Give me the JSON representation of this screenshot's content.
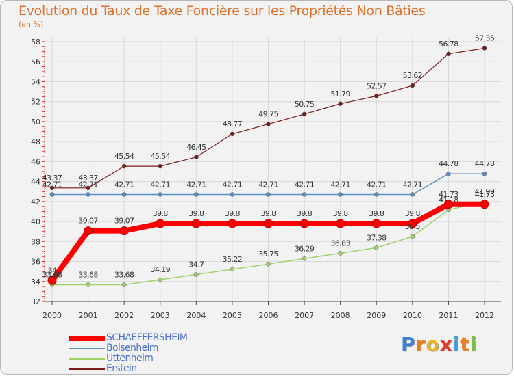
{
  "chart_data": {
    "type": "line",
    "title": "Evolution du Taux de Taxe Foncière sur les Propriétés Non Bâties",
    "subtitle": "(en %)",
    "xlabel": "",
    "ylabel": "",
    "x": [
      "2000",
      "2001",
      "2002",
      "2003",
      "2004",
      "2005",
      "2006",
      "2007",
      "2008",
      "2009",
      "2010",
      "2011",
      "2012"
    ],
    "ylim": [
      32,
      58
    ],
    "yticks": [
      32,
      34,
      36,
      38,
      40,
      42,
      44,
      46,
      48,
      50,
      52,
      54,
      56,
      58
    ],
    "grid": true,
    "legend_position": "bottom-left",
    "series": [
      {
        "name": "Erstein",
        "color": "#7a1a1a",
        "values": [
          43.37,
          43.37,
          45.54,
          45.54,
          46.45,
          48.77,
          49.75,
          50.75,
          51.79,
          52.57,
          53.62,
          56.78,
          57.35
        ],
        "labels": [
          "43.37",
          "43.37",
          "45.54",
          "45.54",
          "46.45",
          "48.77",
          "49.75",
          "50.75",
          "51.79",
          "52.57",
          "53.62",
          "56.78",
          "57.35"
        ]
      },
      {
        "name": "Bolsenheim",
        "color": "#5b8fc7",
        "values": [
          42.71,
          42.71,
          42.71,
          42.71,
          42.71,
          42.71,
          42.71,
          42.71,
          42.71,
          42.71,
          42.71,
          44.78,
          44.78
        ],
        "labels": [
          "42.71",
          "42.71",
          "42.71",
          "42.71",
          "42.71",
          "42.71",
          "42.71",
          "42.71",
          "42.71",
          "42.71",
          "42.71",
          "44.78",
          "44.78"
        ]
      },
      {
        "name": "Uttenheim",
        "color": "#9ed36a",
        "values": [
          33.68,
          33.68,
          33.68,
          34.19,
          34.7,
          35.22,
          35.75,
          36.29,
          36.83,
          37.38,
          38.5,
          41.18,
          41.99
        ],
        "labels": [
          "33.68",
          "33.68",
          "33.68",
          "34.19",
          "34.7",
          "35.22",
          "35.75",
          "36.29",
          "36.83",
          "37.38",
          "38.5",
          "41.18",
          "41.99"
        ]
      },
      {
        "name": "SCHAEFFERSHEIM",
        "color": "#ff0000",
        "values": [
          34.1,
          39.07,
          39.07,
          39.8,
          39.8,
          39.8,
          39.8,
          39.8,
          39.8,
          39.8,
          39.8,
          41.73,
          41.73
        ],
        "labels": [
          "34",
          "39.07",
          "39.07",
          "39.8",
          "39.8",
          "39.8",
          "39.8",
          "39.8",
          "39.8",
          "39.8",
          "39.8",
          "41.73",
          "41.73"
        ]
      }
    ]
  },
  "legend": {
    "items": [
      {
        "name": "SCHAEFFERSHEIM",
        "color": "#ff0000",
        "weight": 8
      },
      {
        "name": "Bolsenheim",
        "color": "#5b8fc7",
        "weight": 2
      },
      {
        "name": "Uttenheim",
        "color": "#9ed36a",
        "weight": 2
      },
      {
        "name": "Erstein",
        "color": "#7a1a1a",
        "weight": 2
      }
    ]
  },
  "brand": {
    "letters": [
      "P",
      "r",
      "o",
      "x",
      "i",
      "t",
      "i"
    ],
    "colors": [
      "#3b82d6",
      "#e87f22",
      "#e8b422",
      "#e03a2a",
      "#4a9ad6",
      "#e87f22",
      "#79c043"
    ]
  }
}
